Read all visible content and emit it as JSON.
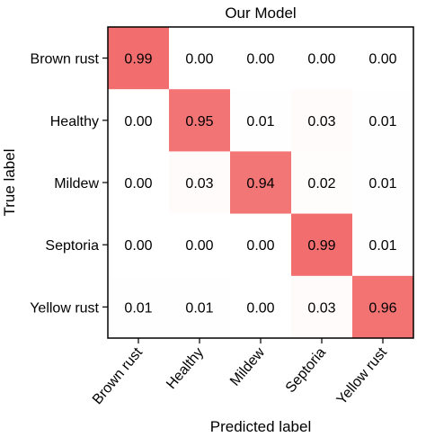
{
  "chart_data": {
    "type": "heatmap",
    "title": "Our Model",
    "xlabel": "Predicted label",
    "ylabel": "True label",
    "row_labels": [
      "Brown rust",
      "Healthy",
      "Mildew",
      "Septoria",
      "Yellow rust"
    ],
    "col_labels": [
      "Brown rust",
      "Healthy",
      "Mildew",
      "Septoria",
      "Yellow rust"
    ],
    "values": [
      [
        0.99,
        0.0,
        0.0,
        0.0,
        0.0
      ],
      [
        0.0,
        0.95,
        0.01,
        0.03,
        0.01
      ],
      [
        0.0,
        0.03,
        0.94,
        0.02,
        0.01
      ],
      [
        0.0,
        0.0,
        0.0,
        0.99,
        0.01
      ],
      [
        0.01,
        0.01,
        0.0,
        0.03,
        0.96
      ]
    ],
    "colormap": {
      "low": "#ffffff",
      "high": "#f26d6d"
    },
    "value_range": [
      0,
      1
    ]
  }
}
